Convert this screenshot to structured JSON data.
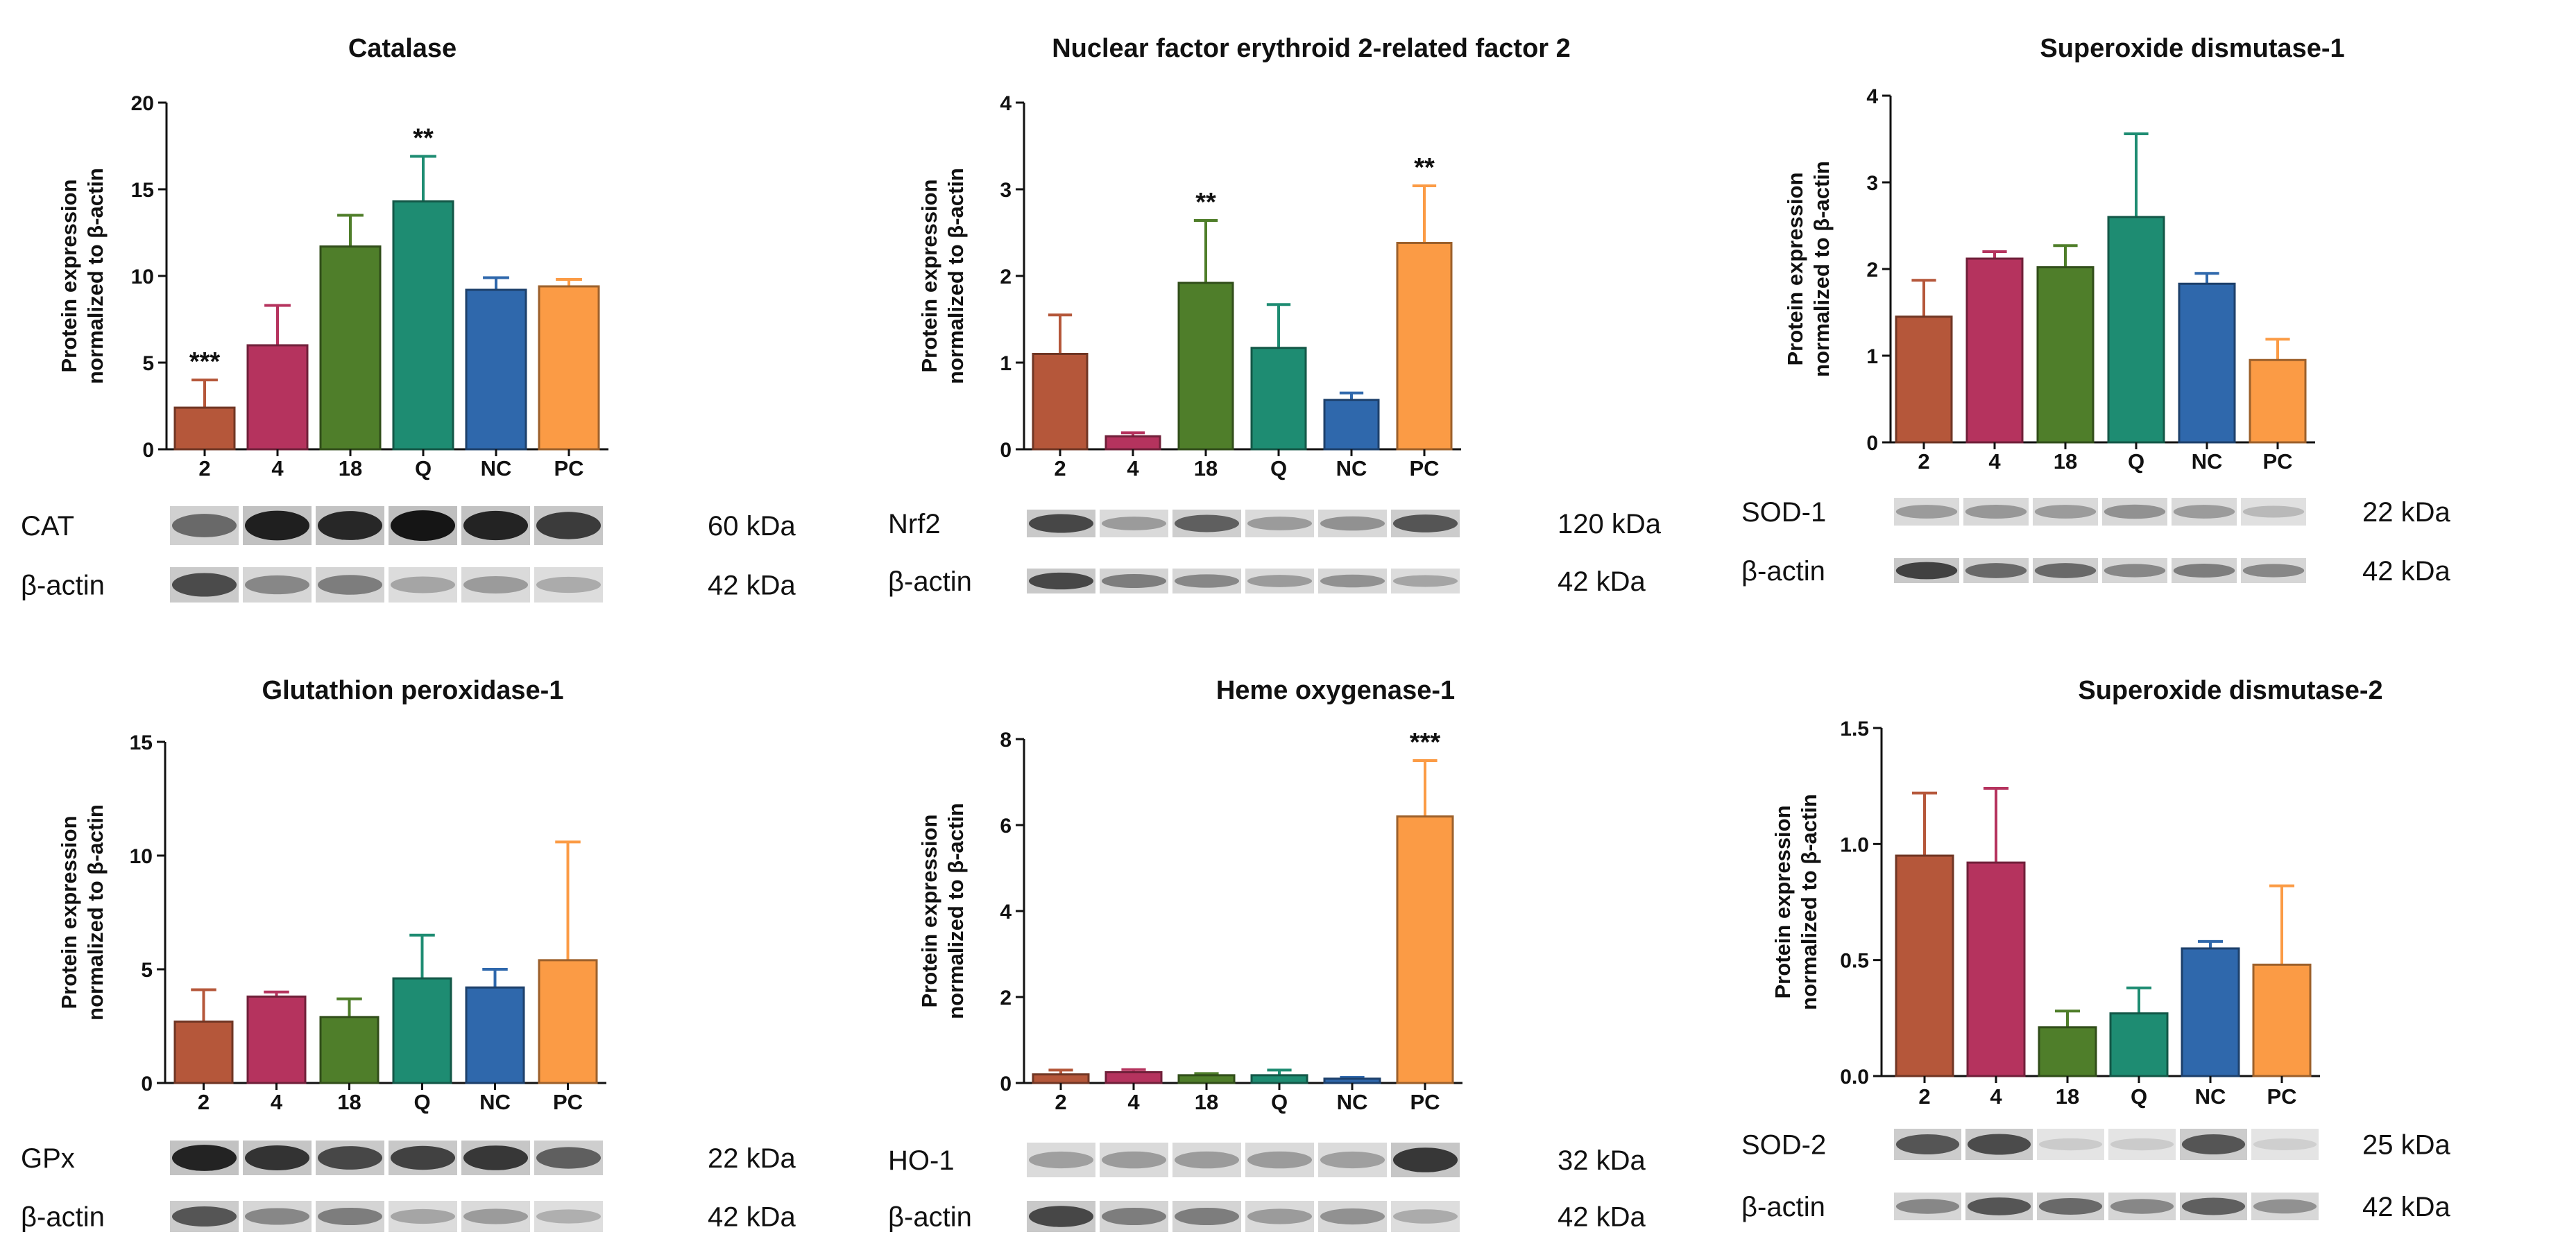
{
  "colors": {
    "2": "#b5573a",
    "4": "#b5335e",
    "18": "#4f7e2a",
    "Q": "#1e8c72",
    "NC": "#2f68ac",
    "PC": "#fb9b45"
  },
  "chart_data": [
    {
      "type": "bar",
      "title": "Catalase",
      "ylabel": [
        "Protein expression",
        "normalized to β-actin"
      ],
      "ylim": [
        0,
        20
      ],
      "yticks": [
        "0",
        "5",
        "10",
        "15",
        "20"
      ],
      "categories": [
        "2",
        "4",
        "18",
        "Q",
        "NC",
        "PC"
      ],
      "values": [
        2.4,
        6.0,
        11.7,
        14.3,
        9.2,
        9.4
      ],
      "errors": [
        1.6,
        2.3,
        1.8,
        2.6,
        0.7,
        0.4
      ],
      "significance": [
        "***",
        "",
        "",
        "**",
        "",
        ""
      ],
      "blots": [
        {
          "label": "CAT",
          "kda": "60 kDa",
          "intensities": [
            0.55,
            0.92,
            0.88,
            0.97,
            0.9,
            0.78
          ]
        },
        {
          "label": "β-actin",
          "kda": "42 kDa",
          "intensities": [
            0.7,
            0.4,
            0.45,
            0.25,
            0.3,
            0.22
          ]
        }
      ]
    },
    {
      "type": "bar",
      "title": "Nuclear factor erythroid 2-related factor 2",
      "ylabel": [
        "Protein expression",
        "normalized to β-actin"
      ],
      "ylim": [
        0,
        4
      ],
      "yticks": [
        "0",
        "1",
        "2",
        "3",
        "4"
      ],
      "categories": [
        "2",
        "4",
        "18",
        "Q",
        "NC",
        "PC"
      ],
      "values": [
        1.1,
        0.15,
        1.92,
        1.17,
        0.57,
        2.38
      ],
      "errors": [
        0.45,
        0.04,
        0.72,
        0.5,
        0.08,
        0.66
      ],
      "significance": [
        "",
        "",
        "**",
        "",
        "",
        "**"
      ],
      "blots": [
        {
          "label": "Nrf2",
          "kda": "120 kDa",
          "intensities": [
            0.72,
            0.3,
            0.6,
            0.3,
            0.35,
            0.65
          ]
        },
        {
          "label": "β-actin",
          "kda": "42 kDa",
          "intensities": [
            0.72,
            0.45,
            0.4,
            0.3,
            0.35,
            0.25
          ]
        }
      ]
    },
    {
      "type": "bar",
      "title": "Superoxide dismutase-1",
      "ylabel": [
        "Protein expression",
        "normalized to β-actin"
      ],
      "ylim": [
        0,
        4
      ],
      "yticks": [
        "0",
        "1",
        "2",
        "3",
        "4"
      ],
      "categories": [
        "2",
        "4",
        "18",
        "Q",
        "NC",
        "PC"
      ],
      "values": [
        1.45,
        2.12,
        2.02,
        2.6,
        1.83,
        0.95
      ],
      "errors": [
        0.42,
        0.08,
        0.25,
        0.96,
        0.12,
        0.24
      ],
      "significance": [
        "",
        "",
        "",
        "",
        "",
        ""
      ],
      "blots": [
        {
          "label": "SOD-1",
          "kda": "22 kDa",
          "intensities": [
            0.3,
            0.32,
            0.3,
            0.35,
            0.3,
            0.15
          ]
        },
        {
          "label": "β-actin",
          "kda": "42 kDa",
          "intensities": [
            0.75,
            0.55,
            0.55,
            0.4,
            0.45,
            0.4
          ]
        }
      ]
    },
    {
      "type": "bar",
      "title": "Glutathion peroxidase-1",
      "ylabel": [
        "Protein expression",
        "normalized to β-actin"
      ],
      "ylim": [
        0,
        15
      ],
      "yticks": [
        "0",
        "5",
        "10",
        "15"
      ],
      "categories": [
        "2",
        "4",
        "18",
        "Q",
        "NC",
        "PC"
      ],
      "values": [
        2.7,
        3.8,
        2.9,
        4.6,
        4.2,
        5.4
      ],
      "errors": [
        1.4,
        0.2,
        0.8,
        1.9,
        0.8,
        5.2
      ],
      "significance": [
        "",
        "",
        "",
        "",
        "",
        ""
      ],
      "blots": [
        {
          "label": "GPx",
          "kda": "22 kDa",
          "intensities": [
            0.9,
            0.82,
            0.72,
            0.75,
            0.8,
            0.6
          ]
        },
        {
          "label": "β-actin",
          "kda": "42 kDa",
          "intensities": [
            0.65,
            0.4,
            0.45,
            0.25,
            0.3,
            0.2
          ]
        }
      ]
    },
    {
      "type": "bar",
      "title": "Heme oxygenase-1",
      "ylabel": [
        "Protein expression",
        "normalized to β-actin"
      ],
      "ylim": [
        0,
        8
      ],
      "yticks": [
        "0",
        "2",
        "4",
        "6",
        "8"
      ],
      "categories": [
        "2",
        "4",
        "18",
        "Q",
        "NC",
        "PC"
      ],
      "values": [
        0.2,
        0.25,
        0.18,
        0.18,
        0.1,
        6.2
      ],
      "errors": [
        0.1,
        0.06,
        0.04,
        0.12,
        0.03,
        1.3
      ],
      "significance": [
        "",
        "",
        "",
        "",
        "",
        "***"
      ],
      "blots": [
        {
          "label": "HO-1",
          "kda": "32 kDa",
          "intensities": [
            0.28,
            0.3,
            0.3,
            0.3,
            0.28,
            0.8
          ]
        },
        {
          "label": "β-actin",
          "kda": "42 kDa",
          "intensities": [
            0.72,
            0.45,
            0.45,
            0.3,
            0.35,
            0.22
          ]
        }
      ]
    },
    {
      "type": "bar",
      "title": "Superoxide dismutase-2",
      "ylabel": [
        "Protein expression",
        "normalized to β-actin"
      ],
      "ylim": [
        0,
        1.5
      ],
      "yticks": [
        "0.0",
        "0.5",
        "1.0",
        "1.5"
      ],
      "categories": [
        "2",
        "4",
        "18",
        "Q",
        "NC",
        "PC"
      ],
      "values": [
        0.95,
        0.92,
        0.21,
        0.27,
        0.55,
        0.48
      ],
      "errors": [
        0.27,
        0.32,
        0.07,
        0.11,
        0.03,
        0.34
      ],
      "significance": [
        "",
        "",
        "",
        "",
        "",
        ""
      ],
      "blots": [
        {
          "label": "SOD-2",
          "kda": "25 kDa",
          "intensities": [
            0.65,
            0.7,
            0.06,
            0.06,
            0.65,
            0.04
          ]
        },
        {
          "label": "β-actin",
          "kda": "42 kDa",
          "intensities": [
            0.4,
            0.65,
            0.55,
            0.4,
            0.6,
            0.35
          ]
        }
      ]
    }
  ]
}
